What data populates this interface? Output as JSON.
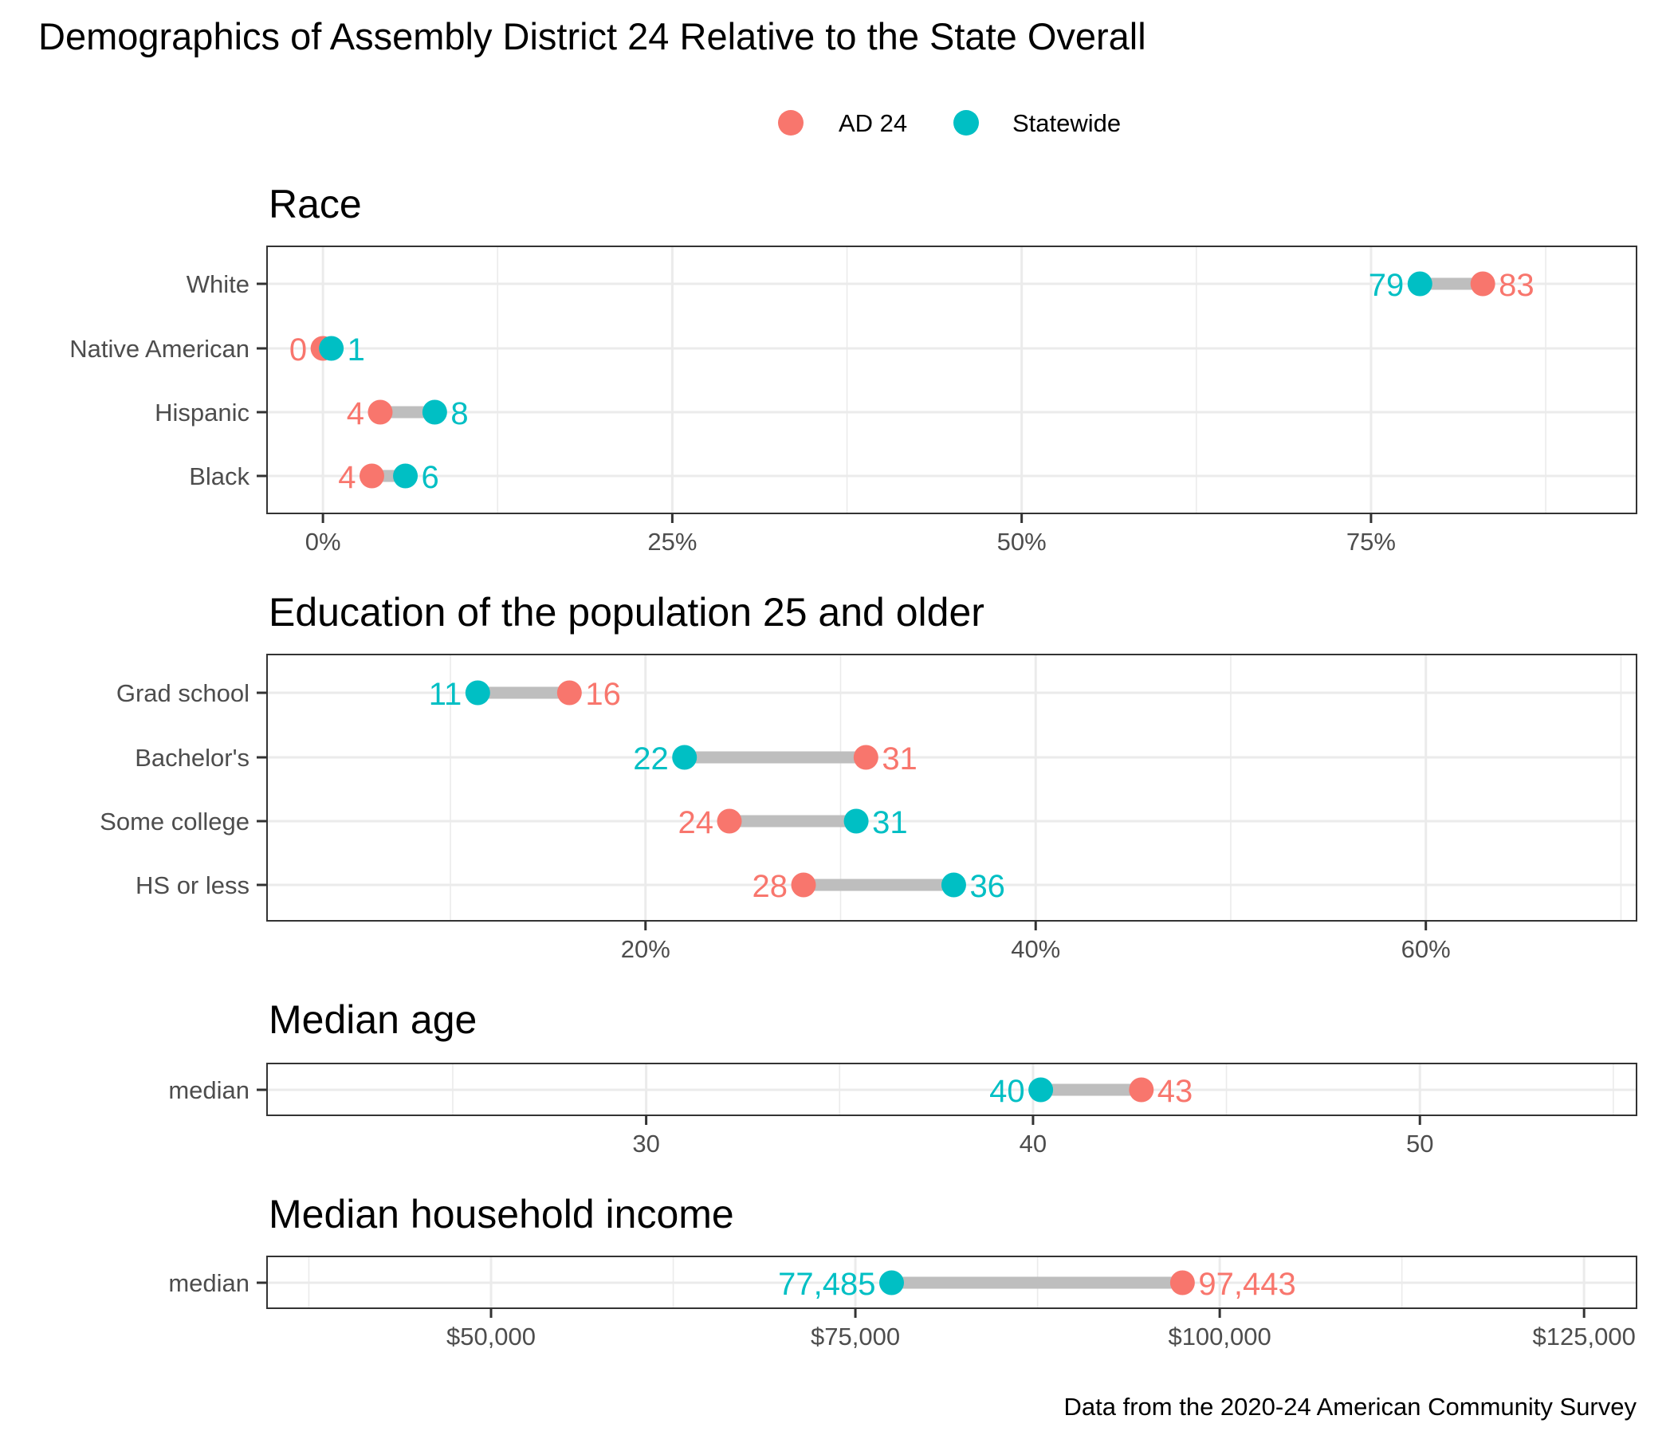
{
  "title": "Demographics of Assembly District 24 Relative to the State Overall",
  "caption": "Data from the 2020-24 American Community Survey",
  "colors": {
    "district": "#F8766D",
    "statewide": "#00BFC4",
    "segment": "#BEBEBE",
    "grid": "#EBEBEB",
    "border": "#333333",
    "axis_text": "#4D4D4D"
  },
  "legend": {
    "position": "top-center",
    "items": [
      {
        "key": "district",
        "label": "AD 24"
      },
      {
        "key": "statewide",
        "label": "Statewide"
      }
    ]
  },
  "chart_data": [
    {
      "type": "scatter",
      "subtype": "dumbbell",
      "title": "Race",
      "xlabel": "",
      "ylabel": "",
      "xlim": [
        -4,
        94
      ],
      "x_ticks": [
        0,
        25,
        50,
        75
      ],
      "x_tick_labels": [
        "0%",
        "25%",
        "50%",
        "75%"
      ],
      "x_minor_ticks": [
        12.5,
        37.5,
        62.5,
        87.5
      ],
      "grid": true,
      "categories": [
        "White",
        "Native American",
        "Hispanic",
        "Black"
      ],
      "series": [
        {
          "name": "AD 24",
          "values": [
            83.0,
            0.0,
            4.1,
            3.5
          ],
          "labels": [
            "83",
            "0",
            "4",
            "4"
          ]
        },
        {
          "name": "Statewide",
          "values": [
            78.5,
            0.6,
            8.0,
            5.9
          ],
          "labels": [
            "79",
            "1",
            "8",
            "6"
          ]
        }
      ]
    },
    {
      "type": "scatter",
      "subtype": "dumbbell",
      "title": "Education of the population 25 and older",
      "xlabel": "",
      "ylabel": "",
      "xlim": [
        0.6,
        70.8
      ],
      "x_ticks": [
        20,
        40,
        60
      ],
      "x_tick_labels": [
        "20%",
        "40%",
        "60%"
      ],
      "x_minor_ticks": [
        10,
        30,
        50,
        70
      ],
      "grid": true,
      "categories": [
        "Grad school",
        "Bachelor's",
        "Some college",
        "HS or less"
      ],
      "series": [
        {
          "name": "AD 24",
          "values": [
            16.1,
            31.3,
            24.3,
            28.1
          ],
          "labels": [
            "16",
            "31",
            "24",
            "28"
          ]
        },
        {
          "name": "Statewide",
          "values": [
            11.4,
            22.0,
            30.8,
            35.8
          ],
          "labels": [
            "11",
            "22",
            "31",
            "36"
          ]
        }
      ]
    },
    {
      "type": "scatter",
      "subtype": "dumbbell",
      "title": "Median age",
      "xlabel": "",
      "ylabel": "",
      "xlim": [
        20.2,
        55.6
      ],
      "x_ticks": [
        30,
        40,
        50
      ],
      "x_tick_labels": [
        "30",
        "40",
        "50"
      ],
      "x_minor_ticks": [
        25,
        35,
        45,
        55
      ],
      "grid": true,
      "categories": [
        "median"
      ],
      "series": [
        {
          "name": "AD 24",
          "values": [
            42.8
          ],
          "labels": [
            "43"
          ]
        },
        {
          "name": "Statewide",
          "values": [
            40.2
          ],
          "labels": [
            "40"
          ]
        }
      ]
    },
    {
      "type": "scatter",
      "subtype": "dumbbell",
      "title": "Median household income",
      "xlabel": "",
      "ylabel": "",
      "xlim": [
        34630,
        128600
      ],
      "x_ticks": [
        50000,
        75000,
        100000,
        125000
      ],
      "x_tick_labels": [
        "$50,000",
        "$75,000",
        "$100,000",
        "$125,000"
      ],
      "x_minor_ticks": [
        37500,
        62500,
        87500,
        112500
      ],
      "grid": true,
      "categories": [
        "median"
      ],
      "series": [
        {
          "name": "AD 24",
          "values": [
            97443
          ],
          "labels": [
            "97,443"
          ]
        },
        {
          "name": "Statewide",
          "values": [
            77485
          ],
          "labels": [
            "77,485"
          ]
        }
      ]
    }
  ]
}
